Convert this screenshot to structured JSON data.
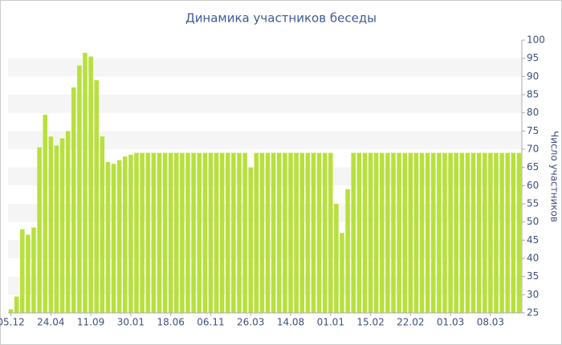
{
  "chart_data": {
    "type": "bar",
    "title": "Динамика участников беседы",
    "y_axis_label": "Число участников",
    "categories": [
      "05.12",
      null,
      null,
      null,
      null,
      null,
      null,
      "24.04",
      null,
      null,
      null,
      null,
      null,
      null,
      "11.09",
      null,
      null,
      null,
      null,
      null,
      null,
      "30.01",
      null,
      null,
      null,
      null,
      null,
      null,
      "18.06",
      null,
      null,
      null,
      null,
      null,
      null,
      "06.11",
      null,
      null,
      null,
      null,
      null,
      null,
      "26.03",
      null,
      null,
      null,
      null,
      null,
      null,
      "14.08",
      null,
      null,
      null,
      null,
      null,
      null,
      "01.01",
      null,
      null,
      null,
      null,
      null,
      null,
      "15.02",
      null,
      null,
      null,
      null,
      null,
      null,
      "22.02",
      null,
      null,
      null,
      null,
      null,
      null,
      "01.03",
      null,
      null,
      null,
      null,
      null,
      null,
      "08.03",
      null,
      null,
      null,
      null,
      null
    ],
    "values": [
      26,
      29.5,
      48,
      46.5,
      48.5,
      70.5,
      79.5,
      73.5,
      71,
      73,
      75,
      87,
      93,
      96.5,
      95.5,
      89,
      73.5,
      66.5,
      66,
      67,
      68,
      68.5,
      69,
      69,
      69,
      69,
      69,
      69,
      69,
      69,
      69,
      69,
      69,
      69,
      69,
      69,
      69,
      69,
      69,
      69,
      69,
      69,
      65,
      69,
      69,
      69,
      69,
      69,
      69,
      69,
      69,
      69,
      69,
      69,
      69,
      69,
      69,
      55,
      47,
      59,
      69,
      69,
      69,
      69,
      69,
      69,
      69,
      69,
      69,
      69,
      69,
      69,
      69,
      69,
      69,
      69,
      69,
      69,
      69,
      69,
      69,
      69,
      69,
      69,
      69,
      69,
      69,
      69,
      69,
      69
    ],
    "color": "#b8e03c",
    "ylim": [
      25,
      100
    ],
    "yticks": [
      25,
      30,
      35,
      40,
      45,
      50,
      55,
      60,
      65,
      70,
      75,
      80,
      85,
      90,
      95,
      100
    ],
    "grid": true
  }
}
